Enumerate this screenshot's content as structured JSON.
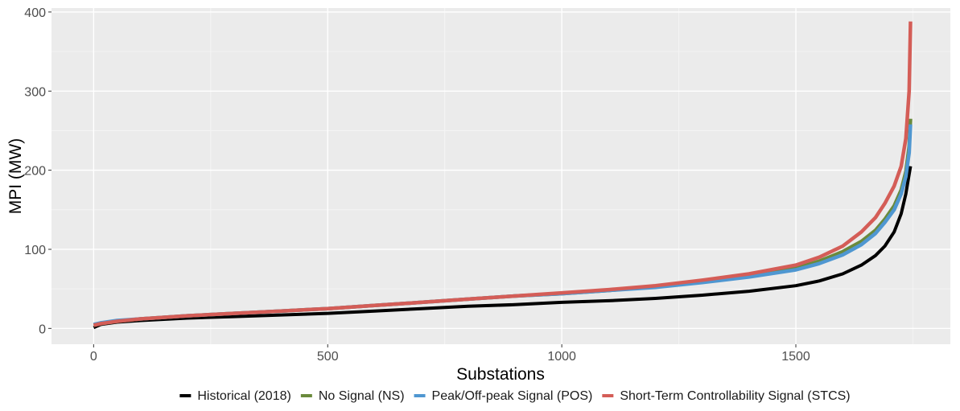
{
  "chart_data": {
    "type": "line",
    "title": "",
    "xlabel": "Substations",
    "ylabel": "MPI (MW)",
    "xlim": [
      -90,
      1830
    ],
    "ylim": [
      -20,
      405
    ],
    "x_ticks": [
      0,
      500,
      1000,
      1500
    ],
    "y_ticks": [
      0,
      100,
      200,
      300,
      400
    ],
    "x_tick_labels": [
      "0",
      "500",
      "1000",
      "1500"
    ],
    "y_tick_labels": [
      "0",
      "100",
      "200",
      "300",
      "400"
    ],
    "grid": true,
    "legend_position": "bottom",
    "series": [
      {
        "name": "Historical (2018)",
        "color": "#000000",
        "points": [
          [
            0,
            1
          ],
          [
            15,
            5
          ],
          [
            50,
            8
          ],
          [
            100,
            10
          ],
          [
            200,
            13
          ],
          [
            300,
            15
          ],
          [
            400,
            17
          ],
          [
            500,
            19
          ],
          [
            600,
            22
          ],
          [
            700,
            25
          ],
          [
            800,
            28
          ],
          [
            900,
            30
          ],
          [
            1000,
            33
          ],
          [
            1100,
            35
          ],
          [
            1200,
            38
          ],
          [
            1300,
            42
          ],
          [
            1400,
            47
          ],
          [
            1500,
            54
          ],
          [
            1550,
            60
          ],
          [
            1600,
            69
          ],
          [
            1640,
            80
          ],
          [
            1670,
            92
          ],
          [
            1690,
            104
          ],
          [
            1710,
            122
          ],
          [
            1725,
            145
          ],
          [
            1735,
            170
          ],
          [
            1742,
            195
          ],
          [
            1745,
            205
          ]
        ]
      },
      {
        "name": "No Signal (NS)",
        "color": "#6a8a3c",
        "points": [
          [
            0,
            4
          ],
          [
            15,
            6
          ],
          [
            50,
            9
          ],
          [
            100,
            12
          ],
          [
            200,
            16
          ],
          [
            300,
            19
          ],
          [
            400,
            22
          ],
          [
            500,
            25
          ],
          [
            600,
            29
          ],
          [
            700,
            33
          ],
          [
            800,
            37
          ],
          [
            900,
            41
          ],
          [
            1000,
            44
          ],
          [
            1100,
            48
          ],
          [
            1200,
            53
          ],
          [
            1300,
            59
          ],
          [
            1400,
            66
          ],
          [
            1500,
            76
          ],
          [
            1550,
            85
          ],
          [
            1600,
            97
          ],
          [
            1640,
            110
          ],
          [
            1670,
            124
          ],
          [
            1690,
            138
          ],
          [
            1710,
            155
          ],
          [
            1725,
            175
          ],
          [
            1735,
            198
          ],
          [
            1742,
            230
          ],
          [
            1745,
            265
          ]
        ]
      },
      {
        "name": "Peak/Off-peak Signal (POS)",
        "color": "#4f97d1",
        "points": [
          [
            0,
            5
          ],
          [
            15,
            7
          ],
          [
            50,
            10
          ],
          [
            100,
            12
          ],
          [
            200,
            16
          ],
          [
            300,
            19
          ],
          [
            400,
            22
          ],
          [
            500,
            25
          ],
          [
            600,
            29
          ],
          [
            700,
            33
          ],
          [
            800,
            37
          ],
          [
            900,
            41
          ],
          [
            1000,
            44
          ],
          [
            1100,
            48
          ],
          [
            1200,
            52
          ],
          [
            1300,
            58
          ],
          [
            1400,
            65
          ],
          [
            1500,
            74
          ],
          [
            1550,
            82
          ],
          [
            1600,
            93
          ],
          [
            1640,
            106
          ],
          [
            1670,
            120
          ],
          [
            1690,
            134
          ],
          [
            1710,
            150
          ],
          [
            1725,
            170
          ],
          [
            1735,
            192
          ],
          [
            1742,
            222
          ],
          [
            1745,
            258
          ]
        ]
      },
      {
        "name": "Short-Term Controllability Signal (STCS)",
        "color": "#d45d57",
        "points": [
          [
            0,
            4
          ],
          [
            15,
            6
          ],
          [
            50,
            9
          ],
          [
            100,
            12
          ],
          [
            200,
            16
          ],
          [
            300,
            19
          ],
          [
            400,
            22
          ],
          [
            500,
            25
          ],
          [
            600,
            29
          ],
          [
            700,
            33
          ],
          [
            800,
            37
          ],
          [
            900,
            41
          ],
          [
            1000,
            45
          ],
          [
            1100,
            49
          ],
          [
            1200,
            54
          ],
          [
            1300,
            61
          ],
          [
            1400,
            69
          ],
          [
            1500,
            80
          ],
          [
            1550,
            90
          ],
          [
            1600,
            104
          ],
          [
            1640,
            122
          ],
          [
            1670,
            140
          ],
          [
            1690,
            158
          ],
          [
            1710,
            180
          ],
          [
            1725,
            205
          ],
          [
            1735,
            240
          ],
          [
            1742,
            300
          ],
          [
            1745,
            388
          ]
        ]
      }
    ]
  }
}
